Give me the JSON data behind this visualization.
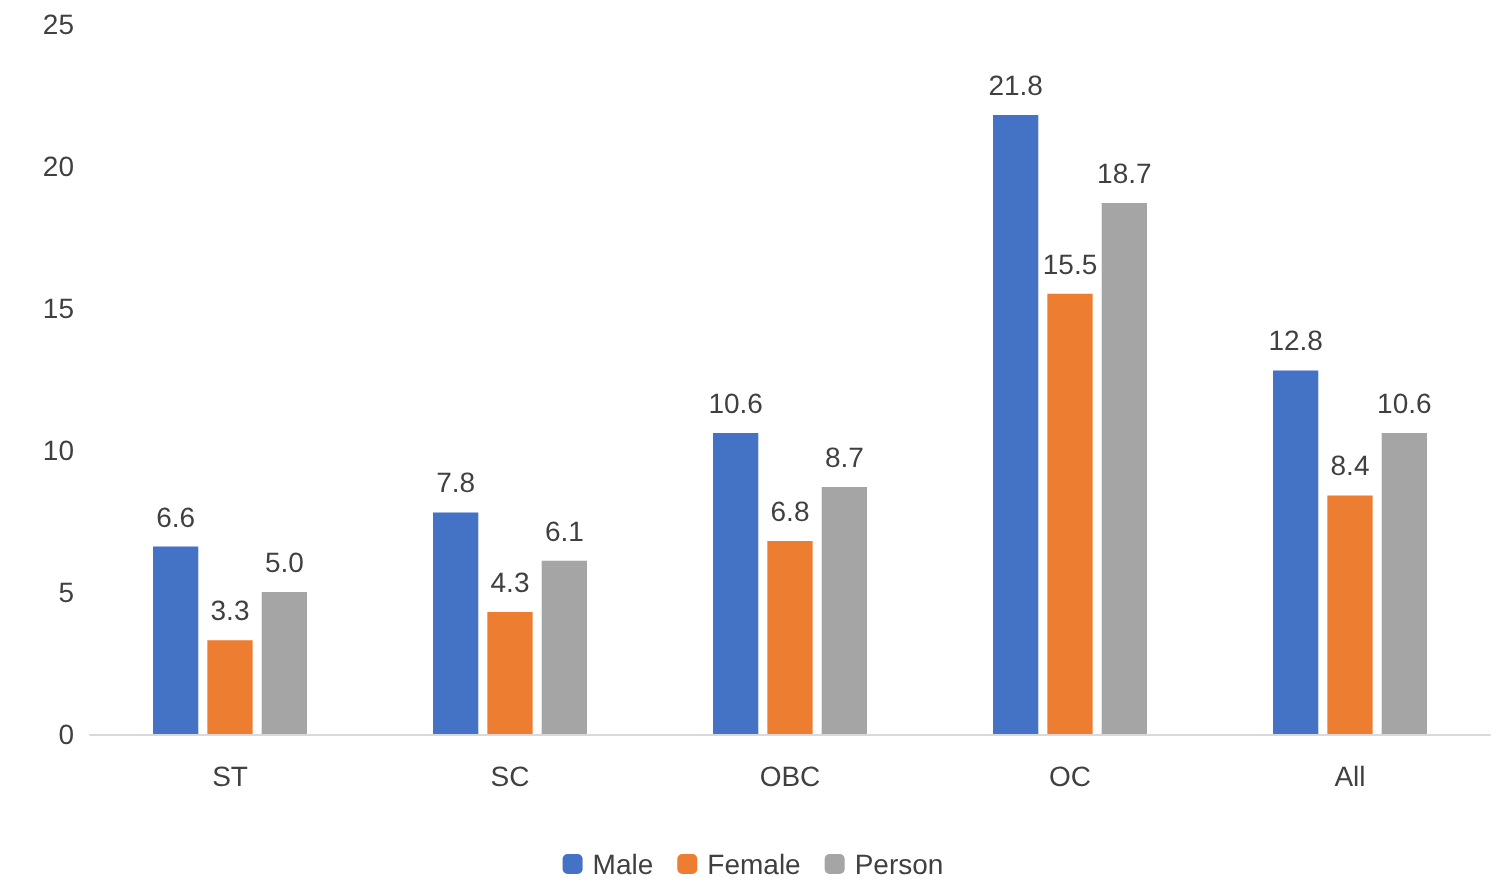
{
  "chart_data": {
    "type": "bar",
    "categories": [
      "ST",
      "SC",
      "OBC",
      "OC",
      "All"
    ],
    "series": [
      {
        "name": "Male",
        "color": "#4472c4",
        "values": [
          6.6,
          7.8,
          10.6,
          21.8,
          12.8
        ],
        "value_labels": [
          "6.6",
          "7.8",
          "10.6",
          "21.8",
          "12.8"
        ]
      },
      {
        "name": "Female",
        "color": "#ed7d31",
        "values": [
          3.3,
          4.3,
          6.8,
          15.5,
          8.4
        ],
        "value_labels": [
          "3.3",
          "4.3",
          "6.8",
          "15.5",
          "8.4"
        ]
      },
      {
        "name": "Person",
        "color": "#a5a5a5",
        "values": [
          5.0,
          6.1,
          8.7,
          18.7,
          10.6
        ],
        "value_labels": [
          "5.0",
          "6.1",
          "8.7",
          "18.7",
          "10.6"
        ]
      }
    ],
    "ylim": [
      0,
      25
    ],
    "yticks": [
      0,
      5,
      10,
      15,
      20,
      25
    ],
    "grid": false,
    "legend": "bottom"
  }
}
